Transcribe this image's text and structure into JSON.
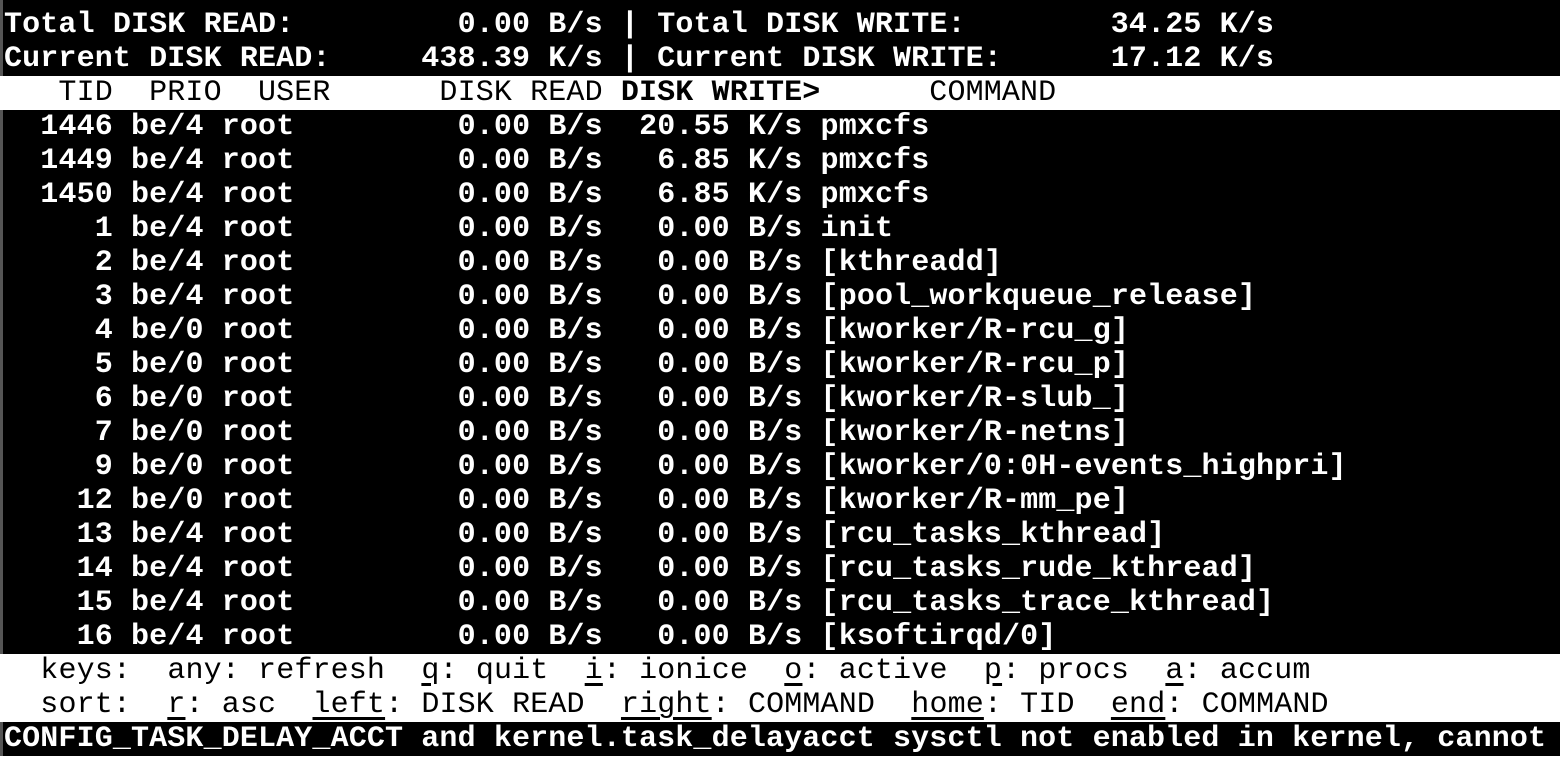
{
  "app": "iotop",
  "colors": {
    "background": "#000000",
    "foreground": "#ffffff",
    "reverse_background": "#ffffff",
    "reverse_foreground": "#000000",
    "edge_strip": "#555555"
  },
  "summary": {
    "separator": "|",
    "rows": [
      {
        "left_label": "Total DISK READ:",
        "left_value": "0.00 B/s",
        "right_label": "Total DISK WRITE:",
        "right_value": "34.25 K/s"
      },
      {
        "left_label": "Current DISK READ:",
        "left_value": "438.39 K/s",
        "right_label": "Current DISK WRITE:",
        "right_value": "17.12 K/s"
      }
    ]
  },
  "table": {
    "columns": [
      "TID",
      "PRIO",
      "USER",
      "DISK READ",
      "DISK WRITE",
      "COMMAND"
    ],
    "sort_column": "DISK WRITE",
    "sort_marker": ">",
    "rows": [
      {
        "tid": "1446",
        "prio": "be/4",
        "user": "root",
        "disk_read": "0.00 B/s",
        "disk_write": "20.55 K/s",
        "command": "pmxcfs"
      },
      {
        "tid": "1449",
        "prio": "be/4",
        "user": "root",
        "disk_read": "0.00 B/s",
        "disk_write": "6.85 K/s",
        "command": "pmxcfs"
      },
      {
        "tid": "1450",
        "prio": "be/4",
        "user": "root",
        "disk_read": "0.00 B/s",
        "disk_write": "6.85 K/s",
        "command": "pmxcfs"
      },
      {
        "tid": "1",
        "prio": "be/4",
        "user": "root",
        "disk_read": "0.00 B/s",
        "disk_write": "0.00 B/s",
        "command": "init"
      },
      {
        "tid": "2",
        "prio": "be/4",
        "user": "root",
        "disk_read": "0.00 B/s",
        "disk_write": "0.00 B/s",
        "command": "[kthreadd]"
      },
      {
        "tid": "3",
        "prio": "be/4",
        "user": "root",
        "disk_read": "0.00 B/s",
        "disk_write": "0.00 B/s",
        "command": "[pool_workqueue_release]"
      },
      {
        "tid": "4",
        "prio": "be/0",
        "user": "root",
        "disk_read": "0.00 B/s",
        "disk_write": "0.00 B/s",
        "command": "[kworker/R-rcu_g]"
      },
      {
        "tid": "5",
        "prio": "be/0",
        "user": "root",
        "disk_read": "0.00 B/s",
        "disk_write": "0.00 B/s",
        "command": "[kworker/R-rcu_p]"
      },
      {
        "tid": "6",
        "prio": "be/0",
        "user": "root",
        "disk_read": "0.00 B/s",
        "disk_write": "0.00 B/s",
        "command": "[kworker/R-slub_]"
      },
      {
        "tid": "7",
        "prio": "be/0",
        "user": "root",
        "disk_read": "0.00 B/s",
        "disk_write": "0.00 B/s",
        "command": "[kworker/R-netns]"
      },
      {
        "tid": "9",
        "prio": "be/0",
        "user": "root",
        "disk_read": "0.00 B/s",
        "disk_write": "0.00 B/s",
        "command": "[kworker/0:0H-events_highpri]"
      },
      {
        "tid": "12",
        "prio": "be/0",
        "user": "root",
        "disk_read": "0.00 B/s",
        "disk_write": "0.00 B/s",
        "command": "[kworker/R-mm_pe]"
      },
      {
        "tid": "13",
        "prio": "be/4",
        "user": "root",
        "disk_read": "0.00 B/s",
        "disk_write": "0.00 B/s",
        "command": "[rcu_tasks_kthread]"
      },
      {
        "tid": "14",
        "prio": "be/4",
        "user": "root",
        "disk_read": "0.00 B/s",
        "disk_write": "0.00 B/s",
        "command": "[rcu_tasks_rude_kthread]"
      },
      {
        "tid": "15",
        "prio": "be/4",
        "user": "root",
        "disk_read": "0.00 B/s",
        "disk_write": "0.00 B/s",
        "command": "[rcu_tasks_trace_kthread]"
      },
      {
        "tid": "16",
        "prio": "be/4",
        "user": "root",
        "disk_read": "0.00 B/s",
        "disk_write": "0.00 B/s",
        "command": "[ksoftirqd/0]"
      }
    ]
  },
  "help": {
    "keys_label": "keys:",
    "keys": [
      {
        "key": "any",
        "label": "refresh",
        "underline": false
      },
      {
        "key": "q",
        "label": "quit",
        "underline": true
      },
      {
        "key": "i",
        "label": "ionice",
        "underline": true
      },
      {
        "key": "o",
        "label": "active",
        "underline": true
      },
      {
        "key": "p",
        "label": "procs",
        "underline": true
      },
      {
        "key": "a",
        "label": "accum",
        "underline": true
      }
    ],
    "sort_label": "sort:",
    "sort": [
      {
        "key": "r",
        "label": "asc",
        "underline": true
      },
      {
        "key": "left",
        "label": "DISK READ",
        "underline": true
      },
      {
        "key": "right",
        "label": "COMMAND",
        "underline": true
      },
      {
        "key": "home",
        "label": "TID",
        "underline": true
      },
      {
        "key": "end",
        "label": "COMMAND",
        "underline": true
      }
    ]
  },
  "status_message": "CONFIG_TASK_DELAY_ACCT and kernel.task_delayacct sysctl not enabled in kernel, cannot"
}
